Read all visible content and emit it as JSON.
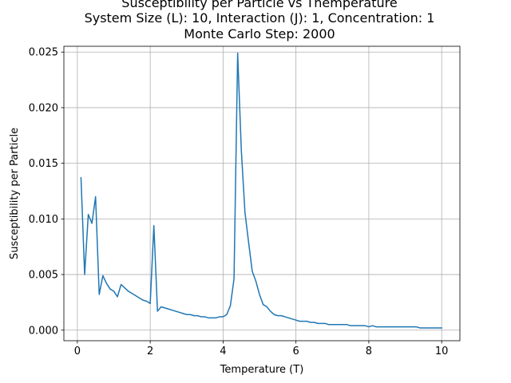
{
  "chart_data": {
    "type": "line",
    "title_lines": [
      "Susceptibility per Particle vs Themperature",
      "System Size (L): 10, Interaction (J): 1, Concentration: 1",
      "Monte Carlo Step: 2000"
    ],
    "xlabel": "Temperature (T)",
    "ylabel": "Susceptibility per Particle",
    "xlim": [
      -0.37,
      10.5
    ],
    "ylim": [
      -0.00095,
      0.02552
    ],
    "xticks": [
      0,
      2,
      4,
      6,
      8,
      10
    ],
    "xtick_labels": [
      "0",
      "2",
      "4",
      "6",
      "8",
      "10"
    ],
    "yticks": [
      0.0,
      0.005,
      0.01,
      0.015,
      0.02,
      0.025
    ],
    "ytick_labels": [
      "0.000",
      "0.005",
      "0.010",
      "0.015",
      "0.020",
      "0.025"
    ],
    "grid": true,
    "legend": "none",
    "colors": {
      "line": "#1f77b4",
      "grid": "#b0b0b0"
    },
    "series": [
      {
        "x": [
          0.1,
          0.2,
          0.3,
          0.4,
          0.5,
          0.6,
          0.7,
          0.8,
          0.9,
          1.0,
          1.1,
          1.2,
          1.3,
          1.4,
          1.5,
          1.6,
          1.7,
          1.8,
          1.9,
          2.0,
          2.1,
          2.2,
          2.3,
          2.4,
          2.5,
          2.6,
          2.7,
          2.8,
          2.9,
          3.0,
          3.1,
          3.2,
          3.3,
          3.4,
          3.5,
          3.6,
          3.7,
          3.8,
          3.9,
          4.0,
          4.1,
          4.2,
          4.3,
          4.4,
          4.5,
          4.6,
          4.7,
          4.8,
          4.9,
          5.0,
          5.1,
          5.2,
          5.3,
          5.4,
          5.5,
          5.6,
          5.7,
          5.8,
          5.9,
          6.0,
          6.1,
          6.2,
          6.3,
          6.4,
          6.5,
          6.6,
          6.7,
          6.8,
          6.9,
          7.0,
          7.1,
          7.2,
          7.3,
          7.4,
          7.5,
          7.6,
          7.7,
          7.8,
          7.9,
          8.0,
          8.1,
          8.2,
          8.3,
          8.4,
          8.5,
          8.6,
          8.7,
          8.8,
          8.9,
          9.0,
          9.1,
          9.2,
          9.3,
          9.4,
          9.5,
          9.6,
          9.7,
          9.8,
          9.9,
          10.0
        ],
        "y": [
          0.0137,
          0.005,
          0.0104,
          0.0096,
          0.012,
          0.0032,
          0.0049,
          0.0042,
          0.0037,
          0.0035,
          0.003,
          0.0041,
          0.0038,
          0.0035,
          0.0033,
          0.0031,
          0.0029,
          0.0027,
          0.0026,
          0.0024,
          0.0094,
          0.0017,
          0.0021,
          0.002,
          0.0019,
          0.0018,
          0.0017,
          0.0016,
          0.0015,
          0.0014,
          0.0014,
          0.0013,
          0.0013,
          0.0012,
          0.0012,
          0.0011,
          0.0011,
          0.0011,
          0.0012,
          0.0012,
          0.0014,
          0.0022,
          0.0046,
          0.0249,
          0.0162,
          0.0106,
          0.0079,
          0.0053,
          0.0044,
          0.0032,
          0.0023,
          0.0021,
          0.0017,
          0.0014,
          0.0013,
          0.0013,
          0.0012,
          0.0011,
          0.001,
          0.0009,
          0.0008,
          0.0008,
          0.0008,
          0.0007,
          0.0007,
          0.0006,
          0.0006,
          0.0006,
          0.0005,
          0.0005,
          0.0005,
          0.0005,
          0.0005,
          0.0005,
          0.0004,
          0.0004,
          0.0004,
          0.0004,
          0.0004,
          0.0003,
          0.0004,
          0.0003,
          0.0003,
          0.0003,
          0.0003,
          0.0003,
          0.0003,
          0.0003,
          0.0003,
          0.0003,
          0.0003,
          0.0003,
          0.0003,
          0.0002,
          0.0002,
          0.0002,
          0.0002,
          0.0002,
          0.0002,
          0.0002
        ]
      }
    ]
  }
}
